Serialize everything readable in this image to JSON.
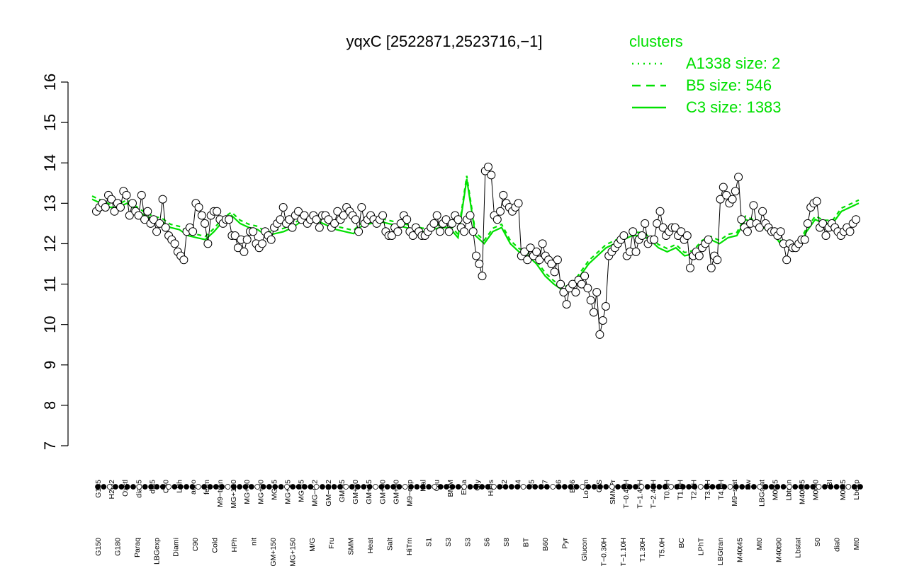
{
  "chart_data": {
    "type": "line",
    "title": "yqxC [2522871,2523716,−1]",
    "xlabel": "",
    "ylabel": "",
    "ylim": [
      7,
      16
    ],
    "yticks": [
      "7",
      "8",
      "9",
      "10",
      "11",
      "12",
      "13",
      "14",
      "15",
      "16"
    ],
    "point_color": "#000000",
    "line_color": "#00e000",
    "grid": false,
    "legend": {
      "title": "clusters",
      "placement": "top-right",
      "entries": [
        {
          "label": "A1338 size: 2",
          "style": "dotted"
        },
        {
          "label": "B5 size: 546",
          "style": "dashed"
        },
        {
          "label": "C3 size: 1383",
          "style": "solid"
        }
      ]
    },
    "x_labels_upper": [
      "G135",
      "H2O2",
      "Oxctl",
      "dia15",
      "dia5",
      "C30",
      "LPh",
      "aero",
      "ferm",
      "M9−tran",
      "MG+120",
      "MG+60",
      "MG+90",
      "MG+5",
      "MG+15",
      "MG+t5",
      "MG−0.2",
      "GM−0.2",
      "GM+t5",
      "GM+30",
      "GM+45",
      "GM+60",
      "GM+90",
      "M9−exp",
      "Mal",
      "Glu",
      "BMM",
      "Etha",
      "Gly",
      "HiOs",
      "S2",
      "S4",
      "S5",
      "S7",
      "S6",
      "B36",
      "LoTm",
      "G/S",
      "SMMPr",
      "T−0.40H",
      "T−1.40H",
      "T−2.40H",
      "T0.0H",
      "T1.0H",
      "T2.0H",
      "T3.0H",
      "T4.0H",
      "M9−stat",
      "Sw",
      "LBGstat",
      "M0t45",
      "Lbtran",
      "M40t45",
      "M0t90",
      "BI",
      "M0t45",
      "Lbexp"
    ],
    "x_labels_lower": [
      "G150",
      "G180",
      "Paraq",
      "LBGexp",
      "Diami",
      "C90",
      "Cold",
      "HPh",
      "nit",
      "GM+150",
      "MG+150",
      "M/G",
      "Fru",
      "SMM",
      "Heat",
      "Salt",
      "HiTm",
      "S1",
      "S3",
      "S3",
      "S6",
      "S8",
      "BT",
      "B60",
      "Pyr",
      "Glucon",
      "T−0.30H",
      "T−1.10H",
      "T1.30H",
      "T5.0H",
      "BC",
      "LPhT",
      "LBGtran",
      "M40t45",
      "Mt0",
      "M40t90",
      "Lbstat",
      "S0",
      "dia0",
      "Mt0"
    ],
    "values": [
      12.8,
      12.9,
      13.0,
      12.9,
      13.2,
      13.1,
      12.8,
      13.0,
      12.9,
      13.3,
      13.2,
      12.7,
      13.0,
      12.8,
      12.7,
      13.2,
      12.6,
      12.8,
      12.5,
      12.6,
      12.3,
      12.5,
      13.1,
      12.4,
      12.2,
      12.1,
      12.0,
      11.8,
      11.7,
      11.6,
      12.3,
      12.4,
      12.3,
      13.0,
      12.9,
      12.7,
      12.5,
      12.0,
      12.7,
      12.8,
      12.8,
      12.6,
      12.5,
      12.6,
      12.6,
      12.2,
      12.2,
      11.9,
      12.1,
      11.8,
      12.1,
      12.3,
      12.3,
      12.0,
      11.9,
      12.0,
      12.3,
      12.2,
      12.1,
      12.4,
      12.5,
      12.6,
      12.9,
      12.5,
      12.6,
      12.4,
      12.7,
      12.8,
      12.6,
      12.7,
      12.5,
      12.6,
      12.7,
      12.6,
      12.4,
      12.7,
      12.7,
      12.6,
      12.4,
      12.5,
      12.8,
      12.6,
      12.7,
      12.9,
      12.8,
      12.7,
      12.6,
      12.3,
      12.9,
      12.5,
      12.6,
      12.7,
      12.6,
      12.5,
      12.6,
      12.7,
      12.3,
      12.2,
      12.2,
      12.4,
      12.3,
      12.5,
      12.7,
      12.6,
      12.3,
      12.2,
      12.4,
      12.3,
      12.2,
      12.2,
      12.3,
      12.4,
      12.5,
      12.7,
      12.3,
      12.5,
      12.6,
      12.3,
      12.5,
      12.7,
      12.6,
      12.4,
      12.3,
      12.6,
      12.7,
      12.3,
      11.7,
      11.5,
      11.2,
      13.8,
      13.9,
      13.7,
      12.7,
      12.6,
      12.8,
      13.2,
      13.0,
      12.9,
      12.8,
      12.9,
      13.0,
      11.7,
      11.8,
      11.6,
      11.9,
      11.7,
      11.8,
      11.6,
      12.0,
      11.7,
      11.6,
      11.5,
      11.3,
      11.6,
      11.0,
      10.8,
      10.5,
      10.9,
      11.0,
      10.8,
      11.1,
      11.0,
      11.2,
      10.9,
      10.6,
      10.3,
      10.8,
      9.75,
      10.1,
      10.45,
      11.7,
      11.8,
      11.9,
      12.0,
      12.1,
      12.2,
      11.7,
      11.8,
      12.3,
      11.8,
      12.1,
      12.2,
      12.5,
      12.0,
      12.1,
      12.1,
      12.5,
      12.8,
      12.4,
      12.2,
      12.3,
      12.4,
      12.4,
      12.2,
      12.3,
      12.1,
      12.2,
      11.4,
      11.7,
      11.8,
      11.7,
      11.9,
      12.0,
      12.1,
      11.4,
      11.7,
      11.6,
      13.1,
      13.4,
      13.2,
      13.0,
      13.1,
      13.3,
      13.65,
      12.6,
      12.4,
      12.3,
      12.5,
      12.95,
      12.5,
      12.4,
      12.8,
      12.5,
      12.4,
      12.3,
      12.3,
      12.2,
      12.3,
      12.0,
      11.6,
      12.0,
      11.9,
      11.9,
      12.0,
      12.1,
      12.1,
      12.5,
      12.9,
      13.0,
      13.05,
      12.4,
      12.5,
      12.2,
      12.4,
      12.5,
      12.4,
      12.3,
      12.2,
      12.3,
      12.4,
      12.3,
      12.5,
      12.6
    ],
    "trend_C3": [
      13.1,
      13.0,
      12.9,
      12.9,
      13.0,
      12.85,
      12.7,
      12.6,
      12.55,
      12.4,
      12.35,
      12.2,
      12.15,
      12.1,
      12.3,
      12.55,
      12.7,
      12.5,
      12.4,
      12.35,
      12.2,
      12.25,
      12.3,
      12.4,
      12.55,
      12.6,
      12.55,
      12.45,
      12.35,
      12.3,
      12.25,
      12.45,
      12.5,
      12.55,
      12.5,
      12.45,
      12.4,
      12.35,
      12.3,
      12.35,
      12.4,
      12.4,
      12.15,
      13.6,
      12.2,
      12.0,
      12.3,
      12.4,
      12.0,
      11.8,
      11.7,
      11.5,
      11.2,
      11.0,
      10.85,
      10.9,
      11.2,
      11.5,
      11.7,
      11.9,
      12.0,
      12.1,
      12.2,
      12.2,
      12.1,
      11.9,
      11.8,
      11.9,
      11.7,
      11.75,
      12.0,
      12.1,
      12.0,
      12.15,
      12.2,
      12.6,
      12.5,
      12.4,
      12.3,
      12.0,
      12.0,
      11.9,
      12.3,
      12.6,
      12.5,
      12.5,
      12.8,
      12.9,
      13.0
    ]
  }
}
